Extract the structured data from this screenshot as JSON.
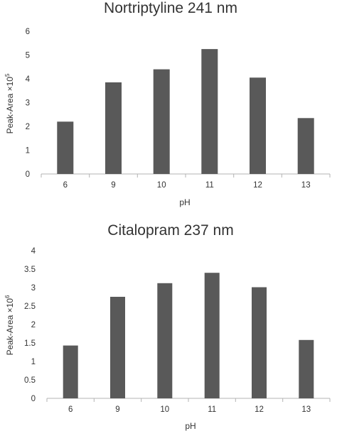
{
  "chart_data": [
    {
      "type": "bar",
      "title": "Nortriptyline 241 nm",
      "xlabel": "pH",
      "ylabel_main": "Peak-Area ×10",
      "ylabel_exponent": "5",
      "categories": [
        "6",
        "9",
        "10",
        "11",
        "12",
        "13"
      ],
      "values": [
        2.2,
        3.85,
        4.4,
        5.25,
        4.05,
        2.35
      ],
      "ylim": [
        0,
        6
      ],
      "yticks": [
        "0",
        "1",
        "2",
        "3",
        "4",
        "5",
        "6"
      ],
      "grid": false,
      "colors": {
        "bar": "#595959",
        "axis": "#b3b3b3",
        "text": "#333333"
      }
    },
    {
      "type": "bar",
      "title": "Citalopram  237 nm",
      "xlabel": "pH",
      "ylabel_main": "Peak-Area ×10",
      "ylabel_exponent": "6",
      "categories": [
        "6",
        "9",
        "10",
        "11",
        "12",
        "13"
      ],
      "values": [
        1.43,
        2.75,
        3.12,
        3.4,
        3.01,
        1.58
      ],
      "ylim": [
        0,
        4
      ],
      "yticks": [
        "0",
        "0.5",
        "1",
        "1.5",
        "2",
        "2.5",
        "3",
        "3.5",
        "4"
      ],
      "grid": false,
      "colors": {
        "bar": "#595959",
        "axis": "#b3b3b3",
        "text": "#333333"
      }
    }
  ]
}
